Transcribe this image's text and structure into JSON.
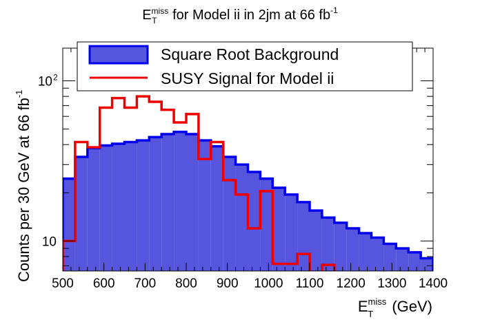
{
  "chart_data": {
    "type": "step-histogram",
    "title": {
      "main": "E",
      "sup": "miss",
      "sub": "T",
      "rest": " for Model ii in 2jm at 66 fb",
      "sup2": "-1"
    },
    "xlabel": {
      "main": "E",
      "sup": "miss",
      "sub": "T",
      "rest": " (GeV)"
    },
    "ylabel": {
      "text": "Counts per 30 GeV at 66 fb",
      "sup": "-1"
    },
    "x_range": [
      500,
      1400
    ],
    "y_range": [
      6.5,
      160
    ],
    "y_scale": "log",
    "bin_edges": [
      500,
      530,
      560,
      590,
      620,
      650,
      680,
      710,
      740,
      770,
      800,
      830,
      860,
      890,
      920,
      950,
      980,
      1010,
      1040,
      1070,
      1100,
      1130,
      1160,
      1190,
      1220,
      1250,
      1280,
      1310,
      1340,
      1370,
      1400
    ],
    "x_ticks": [
      {
        "value": 500,
        "label": "500"
      },
      {
        "value": 600,
        "label": "600"
      },
      {
        "value": 700,
        "label": "700"
      },
      {
        "value": 800,
        "label": "800"
      },
      {
        "value": 900,
        "label": "900"
      },
      {
        "value": 1000,
        "label": "1000"
      },
      {
        "value": 1100,
        "label": "1100"
      },
      {
        "value": 1200,
        "label": "1200"
      },
      {
        "value": 1300,
        "label": "1300"
      },
      {
        "value": 1400,
        "label": "1400"
      }
    ],
    "y_ticks": [
      {
        "value": 10,
        "label": "10"
      },
      {
        "value": 100,
        "label": "10",
        "sup": "2"
      }
    ],
    "legend": {
      "position": "top",
      "entries": [
        {
          "label": "Square Root Background",
          "kind": "filled"
        },
        {
          "label": "SUSY Signal for Model ii",
          "kind": "line"
        }
      ]
    },
    "series": [
      {
        "name": "Square Root Background",
        "style": "filled",
        "fill": "#5555dd",
        "stroke": "#0000ee",
        "values": [
          24.5,
          33.5,
          38,
          39.5,
          40.5,
          41.5,
          42.5,
          44.5,
          46.5,
          48,
          46.5,
          42.5,
          39,
          33.5,
          30,
          27,
          24.5,
          21.5,
          19.5,
          17.5,
          15.5,
          14,
          13,
          12,
          11.2,
          10.5,
          9.6,
          9,
          8.5,
          7.8
        ]
      },
      {
        "name": "SUSY Signal for Model ii",
        "style": "line",
        "stroke": "#ee0000",
        "values": [
          10,
          41.5,
          38.5,
          68,
          78,
          68,
          80,
          74,
          66,
          55,
          62,
          32.5,
          41.5,
          24,
          19.5,
          12,
          20.5,
          7.2,
          7.2,
          8.3,
          6.3,
          7.1,
          6.3,
          6.3,
          6.3,
          6.3,
          6.3,
          6.3,
          6.3,
          6.3
        ]
      }
    ]
  }
}
